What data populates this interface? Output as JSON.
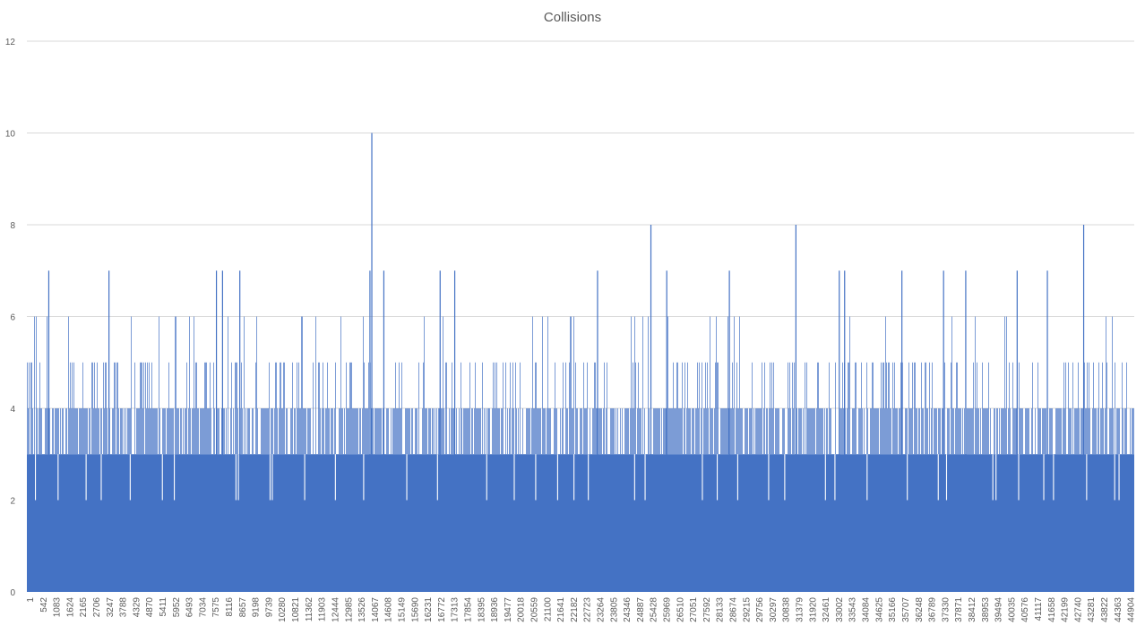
{
  "chart_data": {
    "type": "bar",
    "title": "Collisions",
    "xlabel": "",
    "ylabel": "",
    "ylim": [
      0,
      12
    ],
    "yticks": [
      0,
      2,
      4,
      6,
      8,
      10,
      12
    ],
    "grid": true,
    "legend": "none",
    "bar_color": "#4472c4",
    "x_range": [
      1,
      45445
    ],
    "x_tick_labels": [
      "1",
      "542",
      "1083",
      "1624",
      "2165",
      "2706",
      "3247",
      "3788",
      "4329",
      "4870",
      "5411",
      "5952",
      "6493",
      "7034",
      "7575",
      "8116",
      "8657",
      "9198",
      "9739",
      "10280",
      "10821",
      "11362",
      "11903",
      "12444",
      "12985",
      "13526",
      "14067",
      "14608",
      "15149",
      "15690",
      "16231",
      "16772",
      "17313",
      "17854",
      "18395",
      "18936",
      "19477",
      "20018",
      "20559",
      "21100",
      "21641",
      "22182",
      "22723",
      "23264",
      "23805",
      "24346",
      "24887",
      "25428",
      "25969",
      "26510",
      "27051",
      "27592",
      "28133",
      "28674",
      "29215",
      "29756",
      "30297",
      "30838",
      "31379",
      "31920",
      "32461",
      "33002",
      "33543",
      "34084",
      "34625",
      "35166",
      "35707",
      "36248",
      "36789",
      "37330",
      "37871",
      "38412",
      "38953",
      "39494",
      "40035",
      "40576",
      "41117",
      "41658",
      "42199",
      "42740",
      "43281",
      "43822",
      "44363",
      "44904"
    ],
    "baseline_value": 3,
    "peaks": [
      {
        "x": 14157,
        "y": 10
      },
      {
        "x": 25610,
        "y": 8
      },
      {
        "x": 31560,
        "y": 8
      },
      {
        "x": 43370,
        "y": 8
      },
      {
        "x": 900,
        "y": 7
      },
      {
        "x": 3370,
        "y": 7
      },
      {
        "x": 7780,
        "y": 7
      },
      {
        "x": 8030,
        "y": 7
      },
      {
        "x": 8740,
        "y": 7
      },
      {
        "x": 14080,
        "y": 7
      },
      {
        "x": 14650,
        "y": 7
      },
      {
        "x": 16960,
        "y": 7
      },
      {
        "x": 17560,
        "y": 7
      },
      {
        "x": 23420,
        "y": 7
      },
      {
        "x": 26260,
        "y": 7
      },
      {
        "x": 28830,
        "y": 7
      },
      {
        "x": 33340,
        "y": 7
      },
      {
        "x": 33560,
        "y": 7
      },
      {
        "x": 35910,
        "y": 7
      },
      {
        "x": 37620,
        "y": 7
      },
      {
        "x": 38530,
        "y": 7
      },
      {
        "x": 40640,
        "y": 7
      },
      {
        "x": 41880,
        "y": 7
      }
    ],
    "dips": [
      {
        "x": 350,
        "y": 2
      },
      {
        "x": 1280,
        "y": 2
      },
      {
        "x": 2430,
        "y": 2
      },
      {
        "x": 3050,
        "y": 2
      },
      {
        "x": 4240,
        "y": 2
      },
      {
        "x": 5560,
        "y": 2
      },
      {
        "x": 6050,
        "y": 2
      },
      {
        "x": 8580,
        "y": 2
      },
      {
        "x": 8680,
        "y": 2
      },
      {
        "x": 9980,
        "y": 2
      },
      {
        "x": 10070,
        "y": 2
      },
      {
        "x": 11400,
        "y": 2
      },
      {
        "x": 12660,
        "y": 2
      },
      {
        "x": 13820,
        "y": 2
      },
      {
        "x": 15590,
        "y": 2
      },
      {
        "x": 16850,
        "y": 2
      },
      {
        "x": 18870,
        "y": 2
      },
      {
        "x": 20000,
        "y": 2
      },
      {
        "x": 20880,
        "y": 2
      },
      {
        "x": 21780,
        "y": 2
      },
      {
        "x": 22450,
        "y": 2
      },
      {
        "x": 23040,
        "y": 2
      },
      {
        "x": 24940,
        "y": 2
      },
      {
        "x": 25370,
        "y": 2
      },
      {
        "x": 27720,
        "y": 2
      },
      {
        "x": 28330,
        "y": 2
      },
      {
        "x": 29170,
        "y": 2
      },
      {
        "x": 30440,
        "y": 2
      },
      {
        "x": 31100,
        "y": 2
      },
      {
        "x": 32770,
        "y": 2
      },
      {
        "x": 33160,
        "y": 2
      },
      {
        "x": 34480,
        "y": 2
      },
      {
        "x": 36130,
        "y": 2
      },
      {
        "x": 37400,
        "y": 2
      },
      {
        "x": 37740,
        "y": 2
      },
      {
        "x": 39640,
        "y": 2
      },
      {
        "x": 39770,
        "y": 2
      },
      {
        "x": 40700,
        "y": 2
      },
      {
        "x": 41730,
        "y": 2
      },
      {
        "x": 42130,
        "y": 2
      },
      {
        "x": 43490,
        "y": 2
      },
      {
        "x": 44640,
        "y": 2
      },
      {
        "x": 44820,
        "y": 2
      }
    ]
  }
}
